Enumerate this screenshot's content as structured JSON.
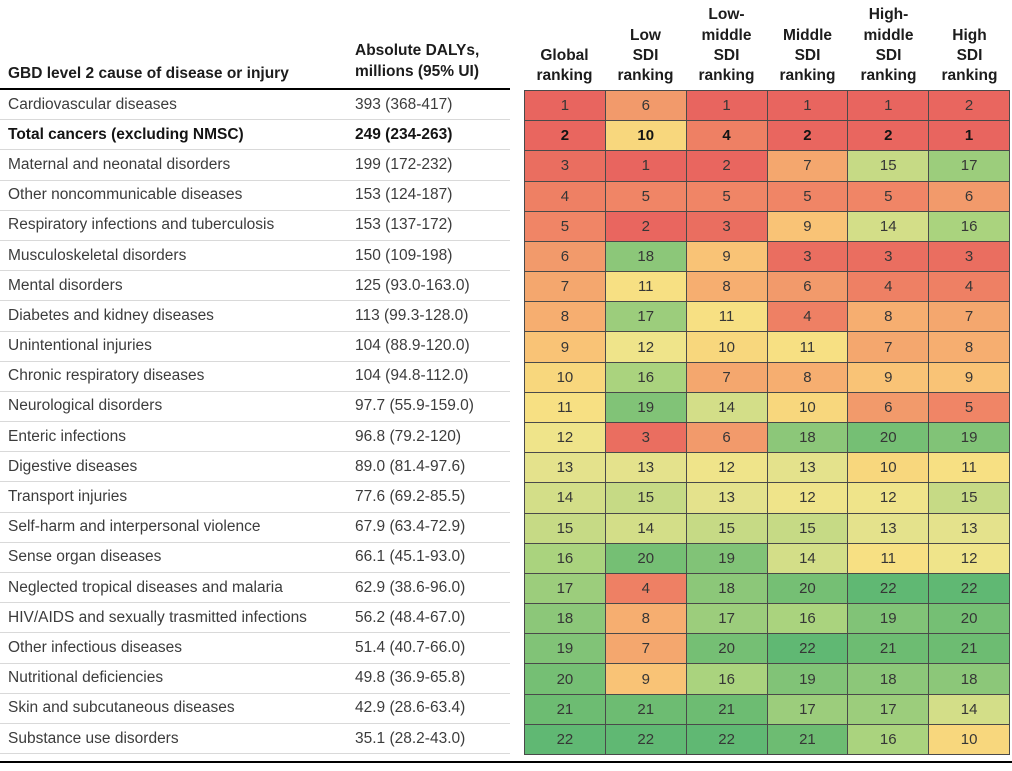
{
  "figure": {
    "header": {
      "cause": "GBD level 2 cause of disease or injury",
      "dalys": "Absolute DALYs,\nmillions (95% UI)",
      "rankings": [
        {
          "label": "Global\nranking"
        },
        {
          "label": "Low\nSDI\nranking"
        },
        {
          "label": "Low-\nmiddle\nSDI\nranking"
        },
        {
          "label": "Middle\nSDI\nranking"
        },
        {
          "label": "High-\nmiddle\nSDI\nranking"
        },
        {
          "label": "High\nSDI\nranking"
        }
      ]
    }
  },
  "chart_data": {
    "type": "heatmap",
    "row_header": "GBD level 2 cause of disease or injury",
    "value_header": "Absolute DALYs, millions (95% UI)",
    "columns": [
      "Global ranking",
      "Low SDI ranking",
      "Low-middle SDI ranking",
      "Middle SDI ranking",
      "High-middle SDI ranking",
      "High SDI ranking"
    ],
    "rank_domain": [
      1,
      22
    ],
    "color_scale_note": "rank 1 = red, mid ranks = yellow, rank 22 = green",
    "palette": [
      "#e8655f",
      "#e9665f",
      "#ea6e60",
      "#ee8064",
      "#f08566",
      "#f29a6b",
      "#f4a76e",
      "#f6ae70",
      "#f9c376",
      "#f8d77d",
      "#f7e083",
      "#efe48a",
      "#e4e28c",
      "#d3de88",
      "#c6da85",
      "#aad37e",
      "#9ccd7c",
      "#8cc779",
      "#81c377",
      "#75bf74",
      "#6dbc72",
      "#60b873"
    ],
    "border_color": "#4a4a4a",
    "separator_color": "#d9d9d9",
    "rule_color": "#000000",
    "rows": [
      {
        "cause": "Cardiovascular diseases",
        "dalys": "393 (368-417)",
        "ranks": [
          1,
          6,
          1,
          1,
          1,
          2
        ],
        "bold": false
      },
      {
        "cause": "Total cancers (excluding NMSC)",
        "dalys": "249 (234-263)",
        "ranks": [
          2,
          10,
          4,
          2,
          2,
          1
        ],
        "bold": true
      },
      {
        "cause": "Maternal and neonatal disorders",
        "dalys": "199 (172-232)",
        "ranks": [
          3,
          1,
          2,
          7,
          15,
          17
        ],
        "bold": false
      },
      {
        "cause": "Other noncommunicable diseases",
        "dalys": "153 (124-187)",
        "ranks": [
          4,
          5,
          5,
          5,
          5,
          6
        ],
        "bold": false
      },
      {
        "cause": "Respiratory infections and tuberculosis",
        "dalys": "153 (137-172)",
        "ranks": [
          5,
          2,
          3,
          9,
          14,
          16
        ],
        "bold": false
      },
      {
        "cause": "Musculoskeletal disorders",
        "dalys": "150 (109-198)",
        "ranks": [
          6,
          18,
          9,
          3,
          3,
          3
        ],
        "bold": false
      },
      {
        "cause": "Mental disorders",
        "dalys": "125 (93.0-163.0)",
        "ranks": [
          7,
          11,
          8,
          6,
          4,
          4
        ],
        "bold": false
      },
      {
        "cause": "Diabetes and kidney diseases",
        "dalys": "113 (99.3-128.0)",
        "ranks": [
          8,
          17,
          11,
          4,
          8,
          7
        ],
        "bold": false
      },
      {
        "cause": "Unintentional injuries",
        "dalys": "104 (88.9-120.0)",
        "ranks": [
          9,
          12,
          10,
          11,
          7,
          8
        ],
        "bold": false
      },
      {
        "cause": "Chronic respiratory diseases",
        "dalys": "104 (94.8-112.0)",
        "ranks": [
          10,
          16,
          7,
          8,
          9,
          9
        ],
        "bold": false
      },
      {
        "cause": "Neurological disorders",
        "dalys": "97.7 (55.9-159.0)",
        "ranks": [
          11,
          19,
          14,
          10,
          6,
          5
        ],
        "bold": false
      },
      {
        "cause": "Enteric infections",
        "dalys": "96.8 (79.2-120)",
        "ranks": [
          12,
          3,
          6,
          18,
          20,
          19
        ],
        "bold": false
      },
      {
        "cause": "Digestive diseases",
        "dalys": "89.0 (81.4-97.6)",
        "ranks": [
          13,
          13,
          12,
          13,
          10,
          11
        ],
        "bold": false
      },
      {
        "cause": "Transport injuries",
        "dalys": "77.6 (69.2-85.5)",
        "ranks": [
          14,
          15,
          13,
          12,
          12,
          15
        ],
        "bold": false
      },
      {
        "cause": "Self-harm and interpersonal violence",
        "dalys": "67.9 (63.4-72.9)",
        "ranks": [
          15,
          14,
          15,
          15,
          13,
          13
        ],
        "bold": false
      },
      {
        "cause": "Sense organ diseases",
        "dalys": "66.1 (45.1-93.0)",
        "ranks": [
          16,
          20,
          19,
          14,
          11,
          12
        ],
        "bold": false
      },
      {
        "cause": "Neglected tropical diseases and malaria",
        "dalys": "62.9 (38.6-96.0)",
        "ranks": [
          17,
          4,
          18,
          20,
          22,
          22
        ],
        "bold": false
      },
      {
        "cause": "HIV/AIDS and sexually trasmitted infections",
        "dalys": "56.2 (48.4-67.0)",
        "ranks": [
          18,
          8,
          17,
          16,
          19,
          20
        ],
        "bold": false
      },
      {
        "cause": "Other infectious diseases",
        "dalys": "51.4 (40.7-66.0)",
        "ranks": [
          19,
          7,
          20,
          22,
          21,
          21
        ],
        "bold": false
      },
      {
        "cause": "Nutritional deficiencies",
        "dalys": "49.8 (36.9-65.8)",
        "ranks": [
          20,
          9,
          16,
          19,
          18,
          18
        ],
        "bold": false
      },
      {
        "cause": "Skin and subcutaneous diseases",
        "dalys": "42.9 (28.6-63.4)",
        "ranks": [
          21,
          21,
          21,
          17,
          17,
          14
        ],
        "bold": false
      },
      {
        "cause": "Substance use disorders",
        "dalys": "35.1 (28.2-43.0)",
        "ranks": [
          22,
          22,
          22,
          21,
          16,
          10
        ],
        "bold": false
      }
    ]
  }
}
